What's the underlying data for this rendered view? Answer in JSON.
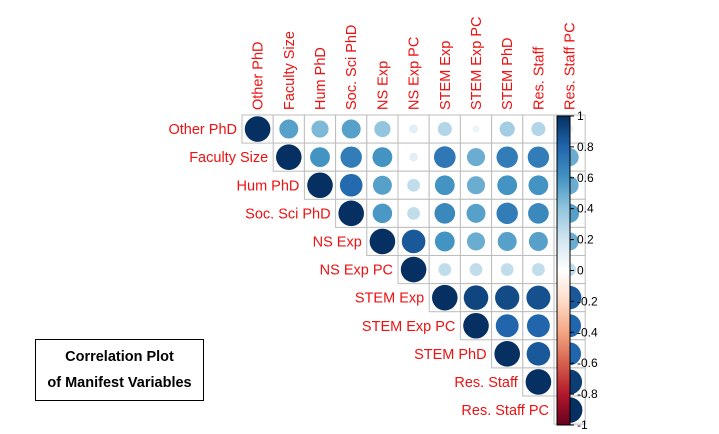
{
  "chart_data": {
    "type": "heatmap",
    "subtype": "correlation-plot-upper-circles",
    "title_lines": [
      "Correlation Plot",
      "of Manifest Variables"
    ],
    "variables": [
      "Other PhD",
      "Faculty Size",
      "Hum PhD",
      "Soc. Sci PhD",
      "NS Exp",
      "NS Exp PC",
      "STEM Exp",
      "STEM Exp PC",
      "STEM PhD",
      "Res. Staff",
      "Res. Staff PC"
    ],
    "matrix": [
      [
        1.0,
        0.55,
        0.45,
        0.55,
        0.4,
        0.12,
        0.3,
        0.08,
        0.35,
        0.3,
        0.1
      ],
      [
        0.55,
        1.0,
        0.6,
        0.7,
        0.6,
        0.12,
        0.72,
        0.5,
        0.7,
        0.7,
        0.5
      ],
      [
        0.45,
        0.6,
        1.0,
        0.78,
        0.55,
        0.25,
        0.6,
        0.5,
        0.6,
        0.6,
        0.5
      ],
      [
        0.55,
        0.7,
        0.78,
        1.0,
        0.58,
        0.25,
        0.65,
        0.55,
        0.7,
        0.65,
        0.55
      ],
      [
        0.4,
        0.6,
        0.55,
        0.58,
        1.0,
        0.85,
        0.6,
        0.5,
        0.55,
        0.55,
        0.5
      ],
      [
        0.12,
        0.12,
        0.25,
        0.25,
        0.85,
        1.0,
        0.25,
        0.25,
        0.25,
        0.25,
        0.25
      ],
      [
        0.3,
        0.72,
        0.6,
        0.65,
        0.6,
        0.25,
        1.0,
        0.92,
        0.9,
        0.88,
        0.85
      ],
      [
        0.08,
        0.5,
        0.5,
        0.55,
        0.5,
        0.25,
        0.92,
        1.0,
        0.8,
        0.8,
        0.8
      ],
      [
        0.35,
        0.7,
        0.6,
        0.7,
        0.55,
        0.25,
        0.9,
        0.8,
        1.0,
        0.85,
        0.8
      ],
      [
        0.3,
        0.7,
        0.6,
        0.65,
        0.55,
        0.25,
        0.88,
        0.8,
        0.85,
        1.0,
        0.95
      ],
      [
        0.1,
        0.5,
        0.5,
        0.55,
        0.5,
        0.25,
        0.85,
        0.8,
        0.8,
        0.95,
        1.0
      ]
    ],
    "color_scale": {
      "range": [
        -1,
        1
      ],
      "ticks": [
        "1",
        "0.8",
        "0.6",
        "0.4",
        "0.2",
        "0",
        "-0.2",
        "-0.4",
        "-0.6",
        "-0.8",
        "-1"
      ],
      "colors": [
        "#67001F",
        "#B2182B",
        "#D6604D",
        "#F4A582",
        "#FDDBC7",
        "#FFFFFF",
        "#D1E5F0",
        "#92C5DE",
        "#4393C3",
        "#2166AC",
        "#053061"
      ]
    },
    "label_color": "#ee1111",
    "grid": true,
    "legend_position": "right"
  }
}
